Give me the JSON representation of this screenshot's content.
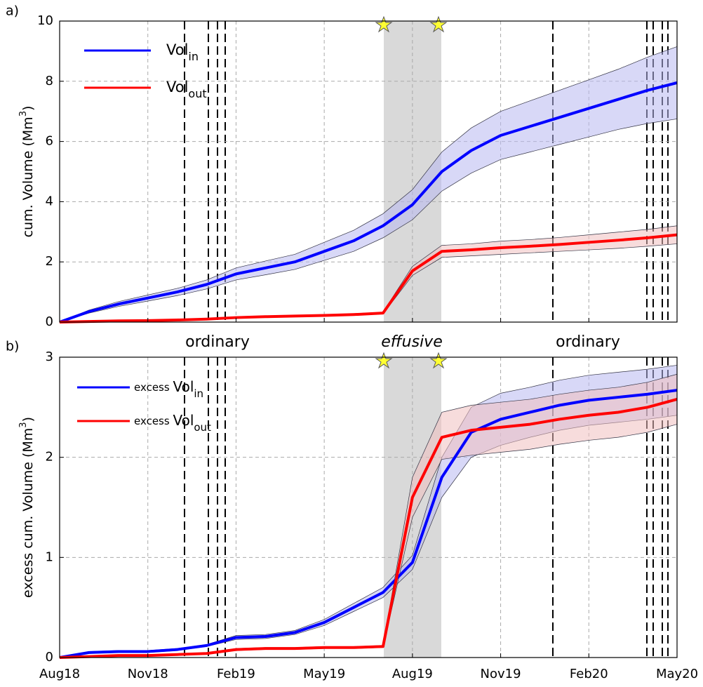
{
  "chart_data": [
    {
      "type": "line",
      "panel_label": "a)",
      "ylabel": {
        "text": "cum. Volume (Mm",
        "sup": "3",
        "after": ")"
      },
      "x": [
        "2018-08",
        "2018-09",
        "2018-10",
        "2018-11",
        "2018-12",
        "2019-01",
        "2019-02",
        "2019-03",
        "2019-04",
        "2019-05",
        "2019-06",
        "2019-07",
        "2019-08",
        "2019-09",
        "2019-10",
        "2019-11",
        "2019-12",
        "2020-01",
        "2020-02",
        "2020-03",
        "2020-04",
        "2020-05"
      ],
      "xlim": [
        "2018-08",
        "2020-05"
      ],
      "ylim": [
        0,
        10
      ],
      "yticks": [
        0,
        2,
        4,
        6,
        8,
        10
      ],
      "grid": true,
      "annotations": [
        "ordinary",
        "effusive",
        "ordinary"
      ],
      "series": [
        {
          "name": "Vol",
          "name_sub": "in",
          "color": "#0000ff",
          "band_color": "#b8b8f0",
          "values": [
            0,
            0.35,
            0.6,
            0.8,
            1.0,
            1.25,
            1.6,
            1.8,
            2.0,
            2.35,
            2.7,
            3.2,
            3.9,
            5.0,
            5.7,
            6.2,
            6.5,
            6.8,
            7.1,
            7.4,
            7.7,
            7.95
          ],
          "lower": [
            0,
            0.3,
            0.52,
            0.7,
            0.88,
            1.1,
            1.4,
            1.57,
            1.75,
            2.05,
            2.35,
            2.8,
            3.4,
            4.35,
            4.95,
            5.4,
            5.65,
            5.9,
            6.15,
            6.4,
            6.6,
            6.75
          ],
          "upper": [
            0,
            0.4,
            0.68,
            0.9,
            1.12,
            1.4,
            1.8,
            2.03,
            2.25,
            2.65,
            3.05,
            3.6,
            4.4,
            5.65,
            6.45,
            7.0,
            7.35,
            7.7,
            8.05,
            8.4,
            8.8,
            9.15
          ]
        },
        {
          "name": "Vol",
          "name_sub": "out",
          "color": "#ff0000",
          "band_color": "#f0c0c0",
          "values": [
            0,
            0.02,
            0.04,
            0.05,
            0.07,
            0.1,
            0.15,
            0.18,
            0.2,
            0.22,
            0.25,
            0.3,
            1.7,
            2.35,
            2.4,
            2.47,
            2.52,
            2.58,
            2.65,
            2.72,
            2.8,
            2.9
          ],
          "lower": [
            0,
            0.02,
            0.03,
            0.04,
            0.06,
            0.09,
            0.13,
            0.16,
            0.18,
            0.2,
            0.22,
            0.27,
            1.55,
            2.15,
            2.2,
            2.25,
            2.3,
            2.35,
            2.4,
            2.45,
            2.52,
            2.6
          ],
          "upper": [
            0,
            0.02,
            0.05,
            0.06,
            0.08,
            0.11,
            0.17,
            0.2,
            0.22,
            0.24,
            0.28,
            0.33,
            1.85,
            2.55,
            2.6,
            2.69,
            2.74,
            2.81,
            2.9,
            2.99,
            3.08,
            3.2
          ]
        }
      ]
    },
    {
      "type": "line",
      "panel_label": "b)",
      "ylabel": {
        "text": "excess cum. Volume (Mm",
        "sup": "3",
        "after": ")"
      },
      "x": [
        "2018-08",
        "2018-09",
        "2018-10",
        "2018-11",
        "2018-12",
        "2019-01",
        "2019-02",
        "2019-03",
        "2019-04",
        "2019-05",
        "2019-06",
        "2019-07",
        "2019-08",
        "2019-09",
        "2019-10",
        "2019-11",
        "2019-12",
        "2020-01",
        "2020-02",
        "2020-03",
        "2020-04",
        "2020-05"
      ],
      "xlim": [
        "2018-08",
        "2020-05"
      ],
      "xticks": [
        {
          "value": "2018-08",
          "label": "Aug18"
        },
        {
          "value": "2018-11",
          "label": "Nov18"
        },
        {
          "value": "2019-02",
          "label": "Feb19"
        },
        {
          "value": "2019-05",
          "label": "May19"
        },
        {
          "value": "2019-08",
          "label": "Aug19"
        },
        {
          "value": "2019-11",
          "label": "Nov19"
        },
        {
          "value": "2020-02",
          "label": "Feb20"
        },
        {
          "value": "2020-05",
          "label": "May20"
        }
      ],
      "ylim": [
        0,
        3
      ],
      "yticks": [
        0,
        1,
        2,
        3
      ],
      "grid": true,
      "series": [
        {
          "name": "excess ",
          "name_main": "Vol",
          "name_sub": "in",
          "color": "#0000ff",
          "band_color": "#b8b8f0",
          "values": [
            0,
            0.05,
            0.06,
            0.06,
            0.08,
            0.12,
            0.2,
            0.21,
            0.25,
            0.35,
            0.5,
            0.65,
            0.95,
            1.8,
            2.25,
            2.38,
            2.45,
            2.52,
            2.57,
            2.6,
            2.63,
            2.67
          ],
          "lower": [
            0,
            0.04,
            0.05,
            0.05,
            0.07,
            0.11,
            0.18,
            0.19,
            0.23,
            0.32,
            0.46,
            0.6,
            0.88,
            1.6,
            2.0,
            2.12,
            2.2,
            2.27,
            2.32,
            2.35,
            2.38,
            2.42
          ],
          "upper": [
            0,
            0.06,
            0.07,
            0.07,
            0.09,
            0.13,
            0.22,
            0.23,
            0.27,
            0.38,
            0.54,
            0.7,
            1.02,
            2.0,
            2.5,
            2.64,
            2.7,
            2.77,
            2.82,
            2.85,
            2.88,
            2.92
          ]
        },
        {
          "name": "excess ",
          "name_main": "Vol",
          "name_sub": "out",
          "color": "#ff0000",
          "band_color": "#f0c0c0",
          "values": [
            0,
            0.01,
            0.02,
            0.02,
            0.03,
            0.04,
            0.08,
            0.09,
            0.09,
            0.1,
            0.1,
            0.11,
            1.6,
            2.2,
            2.27,
            2.3,
            2.33,
            2.38,
            2.42,
            2.45,
            2.5,
            2.58
          ],
          "lower": [
            0,
            0.01,
            0.02,
            0.02,
            0.03,
            0.04,
            0.07,
            0.08,
            0.08,
            0.09,
            0.09,
            0.1,
            1.4,
            1.98,
            2.02,
            2.05,
            2.08,
            2.13,
            2.17,
            2.2,
            2.25,
            2.33
          ],
          "upper": [
            0,
            0.01,
            0.02,
            0.02,
            0.03,
            0.04,
            0.09,
            0.1,
            0.1,
            0.11,
            0.11,
            0.12,
            1.8,
            2.45,
            2.52,
            2.55,
            2.58,
            2.63,
            2.67,
            2.7,
            2.75,
            2.83
          ]
        }
      ]
    }
  ]
}
